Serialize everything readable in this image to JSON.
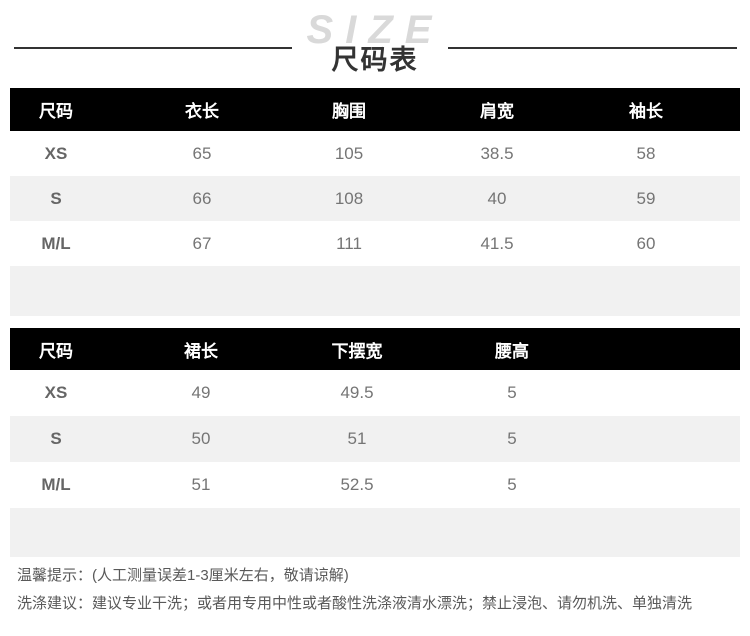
{
  "header": {
    "watermark": "SIZE",
    "title": "尺码表"
  },
  "tables": [
    {
      "name": "garment-size-table",
      "columns": [
        "尺码",
        "衣长",
        "胸围",
        "肩宽",
        "袖长"
      ],
      "rows": [
        {
          "size": "XS",
          "values": [
            "65",
            "105",
            "38.5",
            "58"
          ]
        },
        {
          "size": "S",
          "values": [
            "66",
            "108",
            "40",
            "59"
          ]
        },
        {
          "size": "M/L",
          "values": [
            "67",
            "111",
            "41.5",
            "60"
          ]
        }
      ]
    },
    {
      "name": "skirt-size-table",
      "columns": [
        "尺码",
        "裙长",
        "下摆宽",
        "腰高"
      ],
      "rows": [
        {
          "size": "XS",
          "values": [
            "49",
            "49.5",
            "5"
          ]
        },
        {
          "size": "S",
          "values": [
            "50",
            "51",
            "5"
          ]
        },
        {
          "size": "M/L",
          "values": [
            "51",
            "52.5",
            "5"
          ]
        }
      ]
    }
  ],
  "notes": [
    {
      "label": "温馨提示：",
      "text": "(人工测量误差1-3厘米左右，敬请谅解)"
    },
    {
      "label": "洗涤建议：",
      "text": "建议专业干洗；或者用专用中性或者酸性洗涤液清水漂洗；禁止浸泡、请勿机洗、单独清洗"
    }
  ],
  "colors": {
    "header_bg": "#000000",
    "header_text": "#ffffff",
    "alt_row_bg": "#f1f1f1",
    "value_text": "#757575",
    "size_label_text": "#666666",
    "title_text": "#333333",
    "watermark_text": "#d9d9d9",
    "note_text": "#595959"
  }
}
